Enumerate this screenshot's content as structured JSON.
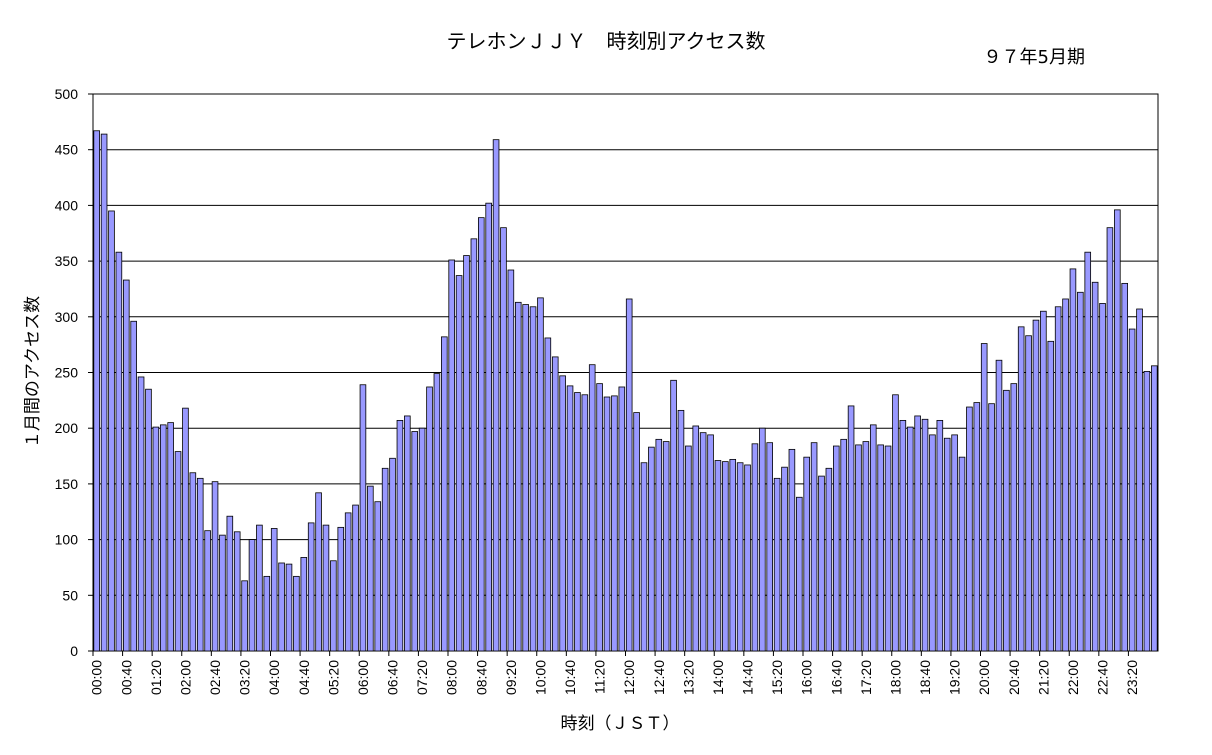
{
  "chart_data": {
    "type": "bar",
    "title": "テレホンＪＪＹ　時刻別アクセス数",
    "subtitle": "９７年5月期",
    "xlabel": "時刻（ＪＳＴ）",
    "ylabel": "１月間のアクセス数",
    "ylim": [
      0,
      500
    ],
    "yticks": [
      0,
      50,
      100,
      150,
      200,
      250,
      300,
      350,
      400,
      450,
      500
    ],
    "grid": true,
    "bar_color": "#9999FF",
    "categories": [
      "00:00",
      "00:10",
      "00:20",
      "00:30",
      "00:40",
      "00:50",
      "01:00",
      "01:10",
      "01:20",
      "01:30",
      "01:40",
      "01:50",
      "02:00",
      "02:10",
      "02:20",
      "02:30",
      "02:40",
      "02:50",
      "03:00",
      "03:10",
      "03:20",
      "03:30",
      "03:40",
      "03:50",
      "04:00",
      "04:10",
      "04:20",
      "04:30",
      "04:40",
      "04:50",
      "05:00",
      "05:10",
      "05:20",
      "05:30",
      "05:40",
      "05:50",
      "06:00",
      "06:10",
      "06:20",
      "06:30",
      "06:40",
      "06:50",
      "07:00",
      "07:10",
      "07:20",
      "07:30",
      "07:40",
      "07:50",
      "08:00",
      "08:10",
      "08:20",
      "08:30",
      "08:40",
      "08:50",
      "09:00",
      "09:10",
      "09:20",
      "09:30",
      "09:40",
      "09:50",
      "10:00",
      "10:10",
      "10:20",
      "10:30",
      "10:40",
      "10:50",
      "11:00",
      "11:10",
      "11:20",
      "11:30",
      "11:40",
      "11:50",
      "12:00",
      "12:10",
      "12:20",
      "12:30",
      "12:40",
      "12:50",
      "13:00",
      "13:10",
      "13:20",
      "13:30",
      "13:40",
      "13:50",
      "14:00",
      "14:10",
      "14:20",
      "14:30",
      "14:40",
      "14:50",
      "15:00",
      "15:10",
      "15:20",
      "15:30",
      "15:40",
      "15:50",
      "16:00",
      "16:10",
      "16:20",
      "16:30",
      "16:40",
      "16:50",
      "17:00",
      "17:10",
      "17:20",
      "17:30",
      "17:40",
      "17:50",
      "18:00",
      "18:10",
      "18:20",
      "18:30",
      "18:40",
      "18:50",
      "19:00",
      "19:10",
      "19:20",
      "19:30",
      "19:40",
      "19:50",
      "20:00",
      "20:10",
      "20:20",
      "20:30",
      "20:40",
      "20:50",
      "21:00",
      "21:10",
      "21:20",
      "21:30",
      "21:40",
      "21:50",
      "22:00",
      "22:10",
      "22:20",
      "22:30",
      "22:40",
      "22:50",
      "23:00",
      "23:10",
      "23:20",
      "23:30",
      "23:40",
      "23:50"
    ],
    "tick_labels": [
      "00:00",
      "00:40",
      "01:20",
      "02:00",
      "02:40",
      "03:20",
      "04:00",
      "04:40",
      "05:20",
      "06:00",
      "06:40",
      "07:20",
      "08:00",
      "08:40",
      "09:20",
      "10:00",
      "10:40",
      "11:20",
      "12:00",
      "12:40",
      "13:20",
      "14:00",
      "14:40",
      "15:20",
      "16:00",
      "16:40",
      "17:20",
      "18:00",
      "18:40",
      "19:20",
      "20:00",
      "20:40",
      "21:20",
      "22:00",
      "22:40",
      "23:20"
    ],
    "values": [
      467,
      464,
      395,
      358,
      333,
      296,
      246,
      235,
      201,
      203,
      205,
      179,
      218,
      160,
      155,
      108,
      152,
      104,
      121,
      107,
      63,
      100,
      113,
      67,
      110,
      79,
      78,
      67,
      84,
      115,
      142,
      113,
      81,
      111,
      124,
      131,
      239,
      148,
      134,
      164,
      173,
      207,
      211,
      197,
      200,
      237,
      249,
      282,
      351,
      337,
      355,
      370,
      389,
      402,
      459,
      380,
      342,
      313,
      311,
      309,
      317,
      281,
      264,
      247,
      238,
      232,
      230,
      257,
      240,
      228,
      229,
      237,
      316,
      214,
      169,
      183,
      190,
      188,
      243,
      216,
      184,
      202,
      196,
      194,
      171,
      170,
      172,
      169,
      167,
      186,
      200,
      187,
      155,
      165,
      181,
      138,
      174,
      187,
      157,
      164,
      184,
      190,
      220,
      185,
      188,
      203,
      185,
      184,
      230,
      207,
      201,
      211,
      208,
      194,
      207,
      191,
      194,
      174,
      219,
      223,
      276,
      222,
      261,
      234,
      240,
      291,
      283,
      297,
      305,
      278,
      309,
      316,
      343,
      322,
      358,
      331,
      312,
      380,
      396,
      330,
      289,
      307,
      251,
      256
    ]
  }
}
